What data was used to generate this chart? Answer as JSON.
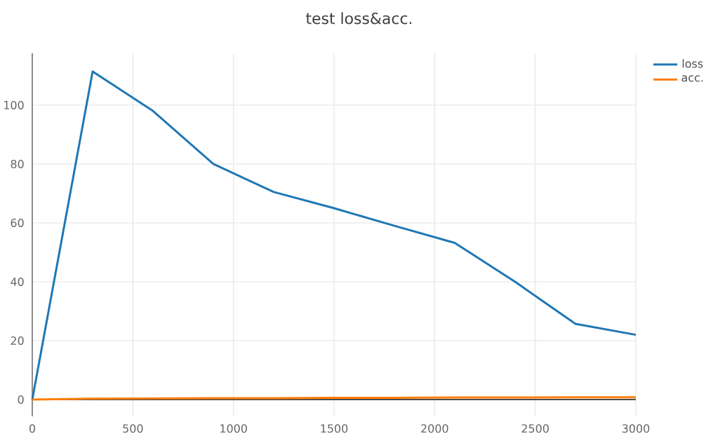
{
  "chart_data": {
    "type": "line",
    "title": "test loss&acc.",
    "x": [
      0,
      300,
      600,
      900,
      1200,
      1500,
      1800,
      2100,
      2400,
      2700,
      3000
    ],
    "series": [
      {
        "name": "loss",
        "color": "#1f77b4",
        "values": [
          0,
          111.4,
          98,
          80,
          70.5,
          65,
          59,
          53.2,
          40,
          25.7,
          22
        ]
      },
      {
        "name": "acc.",
        "color": "#ff7f0e",
        "values": [
          0,
          0.3,
          0.4,
          0.5,
          0.5,
          0.6,
          0.6,
          0.7,
          0.7,
          0.8,
          0.8
        ]
      }
    ],
    "xlim": [
      0,
      3000
    ],
    "ylim": [
      -5.7,
      117.6
    ],
    "xticks": [
      0,
      500,
      1000,
      1500,
      2000,
      2500,
      3000
    ],
    "yticks": [
      0,
      20,
      40,
      60,
      80,
      100
    ],
    "grid": true,
    "legend": "top right",
    "line_style": "solid",
    "marker": "none"
  }
}
